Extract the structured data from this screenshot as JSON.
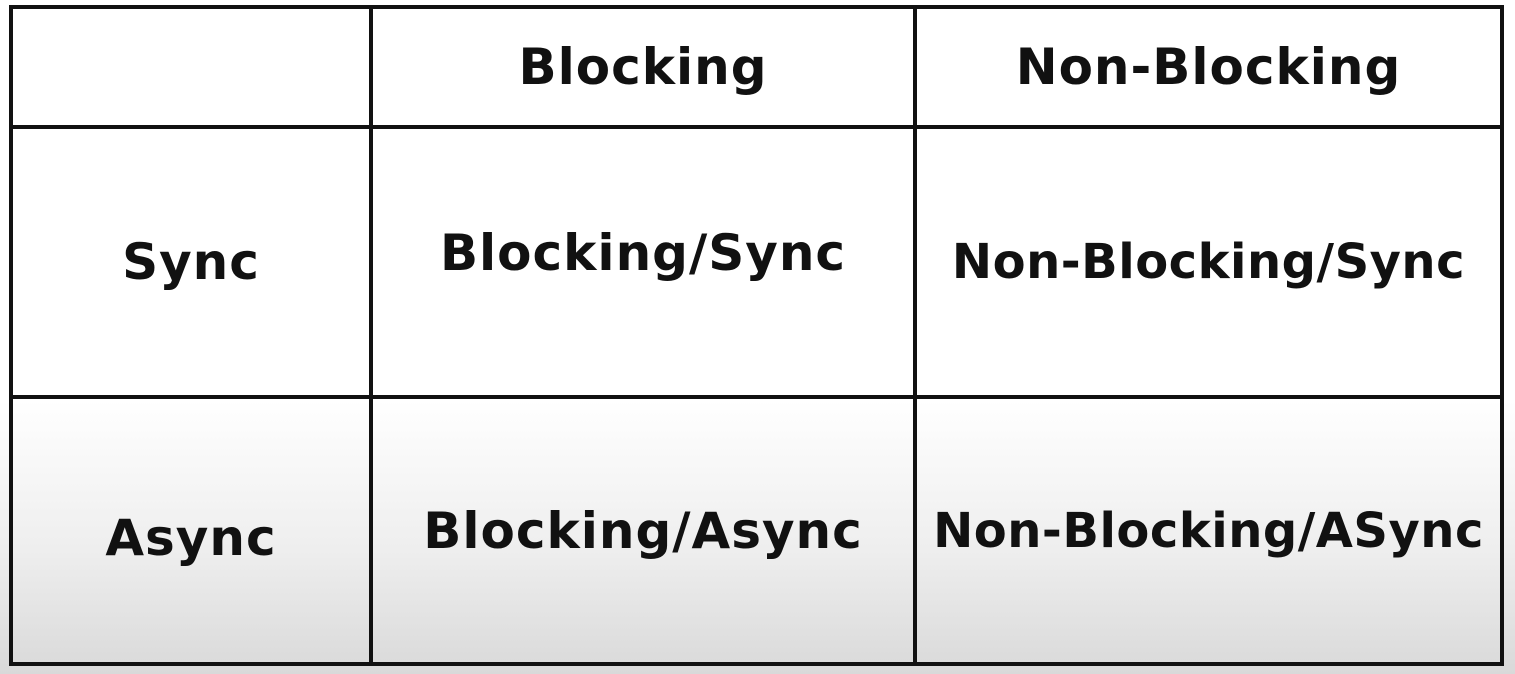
{
  "table": {
    "corner": "",
    "columns": [
      "Blocking",
      "Non-Blocking"
    ],
    "rows": [
      {
        "header": "Sync",
        "cells": [
          "Blocking/Sync",
          "Non-Blocking/Sync"
        ]
      },
      {
        "header": "Async",
        "cells": [
          "Blocking/Async",
          "Non-Blocking/ASync"
        ]
      }
    ]
  },
  "colors": {
    "line": "#111111",
    "text": "#111111",
    "background": "#ffffff",
    "shade": "#d9d9d9"
  }
}
